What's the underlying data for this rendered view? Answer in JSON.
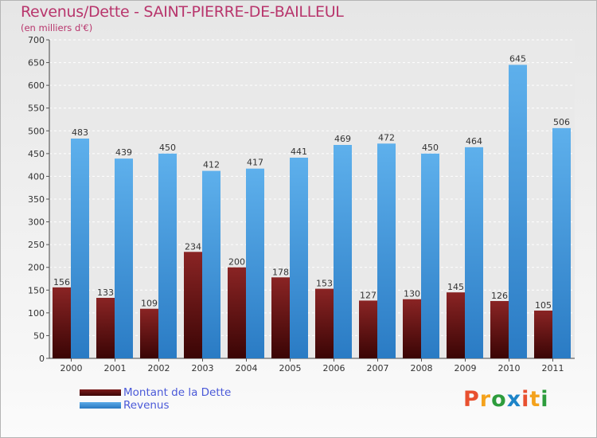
{
  "chart_data": {
    "type": "bar",
    "title": "Revenus/Dette - SAINT-PIERRE-DE-BAILLEUL",
    "subtitle": "(en milliers d'€)",
    "categories": [
      "2000",
      "2001",
      "2002",
      "2003",
      "2004",
      "2005",
      "2006",
      "2007",
      "2008",
      "2009",
      "2010",
      "2011"
    ],
    "series": [
      {
        "name": "Montant de la Dette",
        "color": "#7a1b1b",
        "values": [
          156,
          133,
          109,
          234,
          200,
          178,
          153,
          127,
          130,
          145,
          126,
          105
        ]
      },
      {
        "name": "Revenus",
        "color": "#4f9fe0",
        "values": [
          483,
          439,
          450,
          412,
          417,
          441,
          469,
          472,
          450,
          464,
          645,
          506
        ]
      }
    ],
    "ylim": [
      0,
      700
    ],
    "yticks": [
      0,
      50,
      100,
      150,
      200,
      250,
      300,
      350,
      400,
      450,
      500,
      550,
      600,
      650,
      700
    ],
    "grid": true,
    "legend_position": "bottom-left"
  },
  "brand": {
    "letters": [
      "P",
      "r",
      "o",
      "x",
      "i",
      "t",
      "i"
    ],
    "colors": [
      "#e8502f",
      "#f4a21c",
      "#2d9c3c",
      "#1d84c8",
      "#e8502f",
      "#f4a21c",
      "#2d9c3c"
    ]
  }
}
